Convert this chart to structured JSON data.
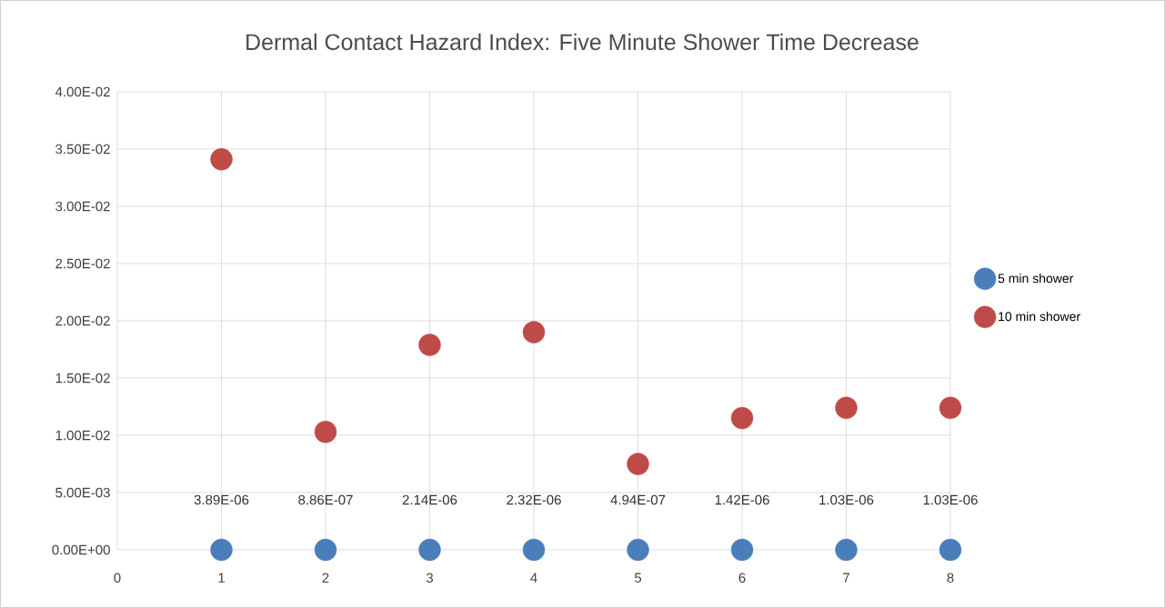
{
  "chart_data": {
    "type": "scatter",
    "title": "Dermal Contact Hazard Index: Five Minute Shower Time Decrease",
    "x": [
      1,
      2,
      3,
      4,
      5,
      6,
      7,
      8
    ],
    "series": [
      {
        "name": "5 min shower",
        "color": "#4a7ebb",
        "values": [
          3.89e-06,
          8.86e-07,
          2.14e-06,
          2.32e-06,
          4.94e-07,
          1.42e-06,
          1.03e-06,
          1.03e-06
        ],
        "value_labels": [
          "3.89E-06",
          "8.86E-07",
          "2.14E-06",
          "2.32E-06",
          "4.94E-07",
          "1.42E-06",
          "1.03E-06",
          "1.03E-06"
        ]
      },
      {
        "name": "10 min shower",
        "color": "#be4b48",
        "values": [
          0.0341,
          0.0103,
          0.0179,
          0.019,
          0.0075,
          0.0115,
          0.0124,
          0.0124
        ]
      }
    ],
    "xlim": [
      0,
      8
    ],
    "xticks": [
      0,
      1,
      2,
      3,
      4,
      5,
      6,
      7,
      8
    ],
    "ylim": [
      0,
      0.04
    ],
    "yticks": [
      {
        "value": 0,
        "label": "0.00E+00"
      },
      {
        "value": 0.005,
        "label": "5.00E-03"
      },
      {
        "value": 0.01,
        "label": "1.00E-02"
      },
      {
        "value": 0.015,
        "label": "1.50E-02"
      },
      {
        "value": 0.02,
        "label": "2.00E-02"
      },
      {
        "value": 0.025,
        "label": "2.50E-02"
      },
      {
        "value": 0.03,
        "label": "3.00E-02"
      },
      {
        "value": 0.035,
        "label": "3.50E-02"
      },
      {
        "value": 0.04,
        "label": "4.00E-02"
      }
    ],
    "grid": true,
    "legend": "right",
    "marker": "circle"
  }
}
